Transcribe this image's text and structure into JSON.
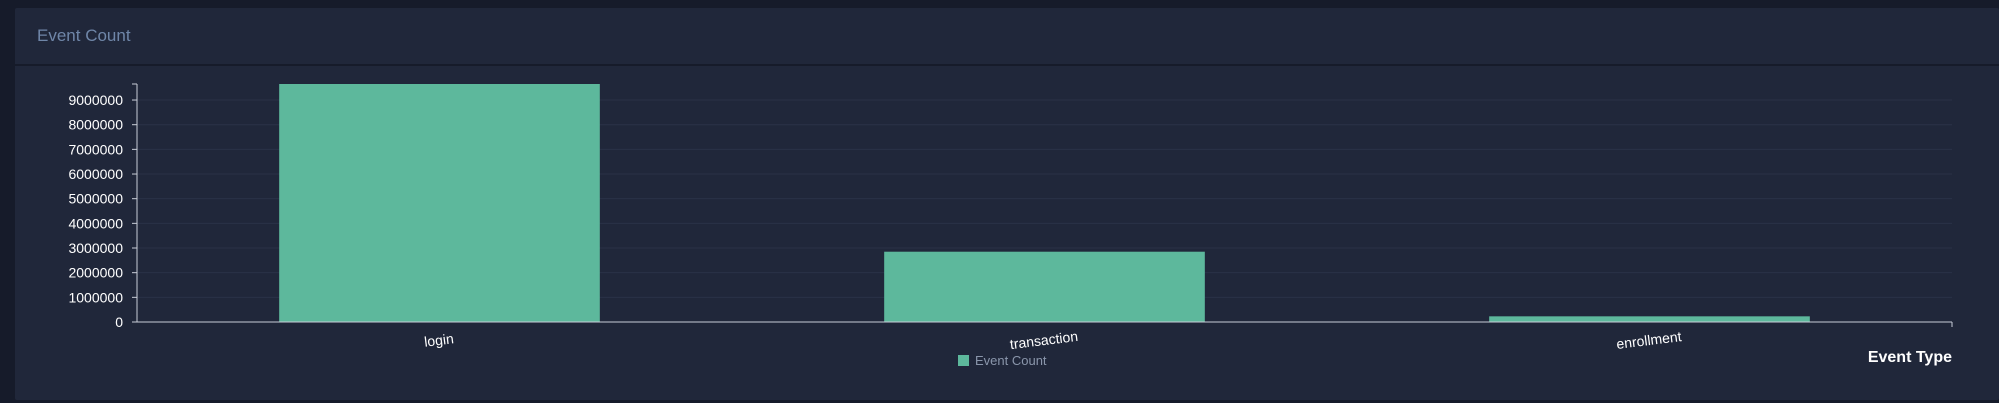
{
  "panel": {
    "title": "Event Count"
  },
  "colors": {
    "bar": "#5db89c",
    "axis": "#c9ced8",
    "grid": "#2a3247",
    "panel_bg": "#20273a"
  },
  "chart_data": {
    "type": "bar",
    "categories": [
      "login",
      "transaction",
      "enrollment"
    ],
    "series": [
      {
        "name": "Event Count",
        "values": [
          9650000,
          2850000,
          230000
        ]
      }
    ],
    "xlabel": "Event Type",
    "ylabel": "",
    "ylim": [
      0,
      9650000
    ],
    "yticks": [
      0,
      1000000,
      2000000,
      3000000,
      4000000,
      5000000,
      6000000,
      7000000,
      8000000,
      9000000
    ],
    "grid": true,
    "legend": "bottom-center"
  }
}
